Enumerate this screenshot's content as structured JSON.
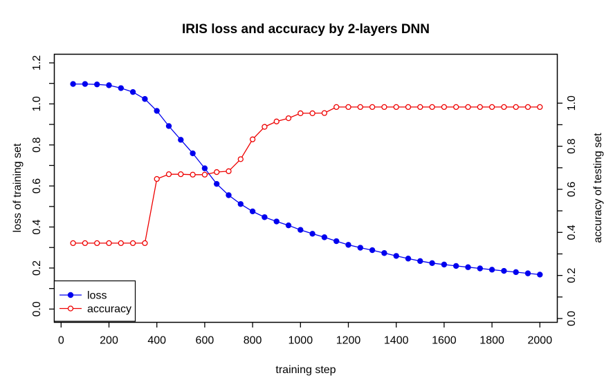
{
  "chart_data": {
    "type": "line",
    "title": "IRIS loss and accuracy by 2-layers DNN",
    "xlabel": "training step",
    "ylabel_left": "loss of training set",
    "ylabel_right": "accuracy of testing set",
    "grid": false,
    "x": [
      50,
      100,
      150,
      200,
      250,
      300,
      350,
      400,
      450,
      500,
      550,
      600,
      650,
      700,
      750,
      800,
      850,
      900,
      950,
      1000,
      1050,
      1100,
      1150,
      1200,
      1250,
      1300,
      1350,
      1400,
      1450,
      1500,
      1550,
      1600,
      1650,
      1700,
      1750,
      1800,
      1850,
      1900,
      1950,
      2000
    ],
    "series": [
      {
        "name": "loss",
        "axis": "left",
        "color": "#0000EE",
        "marker": "filled-circle",
        "values": [
          1.097,
          1.097,
          1.095,
          1.091,
          1.077,
          1.058,
          1.024,
          0.966,
          0.892,
          0.825,
          0.759,
          0.686,
          0.61,
          0.555,
          0.512,
          0.476,
          0.448,
          0.427,
          0.408,
          0.386,
          0.367,
          0.35,
          0.331,
          0.313,
          0.299,
          0.287,
          0.273,
          0.259,
          0.246,
          0.234,
          0.224,
          0.217,
          0.21,
          0.204,
          0.198,
          0.192,
          0.186,
          0.18,
          0.174,
          0.168
        ]
      },
      {
        "name": "accuracy",
        "axis": "right",
        "color": "#EE0000",
        "marker": "open-circle",
        "values": [
          0.35,
          0.35,
          0.35,
          0.35,
          0.35,
          0.35,
          0.35,
          0.648,
          0.67,
          0.67,
          0.668,
          0.668,
          0.68,
          0.684,
          0.74,
          0.832,
          0.89,
          0.915,
          0.93,
          0.953,
          0.953,
          0.954,
          0.982,
          0.982,
          0.982,
          0.982,
          0.982,
          0.982,
          0.982,
          0.982,
          0.982,
          0.982,
          0.982,
          0.982,
          0.982,
          0.982,
          0.982,
          0.982,
          0.982,
          0.982
        ]
      }
    ],
    "x_axis": {
      "range": [
        0,
        2000
      ],
      "ticks": [
        {
          "v": 0,
          "label": "0"
        },
        {
          "v": 200,
          "label": "200"
        },
        {
          "v": 400,
          "label": "400"
        },
        {
          "v": 600,
          "label": "600"
        },
        {
          "v": 800,
          "label": "800"
        },
        {
          "v": 1000,
          "label": "1000"
        },
        {
          "v": 1200,
          "label": "1200"
        },
        {
          "v": 1400,
          "label": "1400"
        },
        {
          "v": 1600,
          "label": "1600"
        },
        {
          "v": 1800,
          "label": "1800"
        },
        {
          "v": 2000,
          "label": "2000"
        }
      ]
    },
    "left_axis": {
      "range": [
        0,
        1.2
      ],
      "ticks": [
        {
          "v": 0.0,
          "label": "0.0"
        },
        {
          "v": 0.1
        },
        {
          "v": 0.2,
          "label": "0.2"
        },
        {
          "v": 0.3
        },
        {
          "v": 0.4,
          "label": "0.4"
        },
        {
          "v": 0.5
        },
        {
          "v": 0.6,
          "label": "0.6"
        },
        {
          "v": 0.7
        },
        {
          "v": 0.8,
          "label": "0.8"
        },
        {
          "v": 0.9
        },
        {
          "v": 1.0,
          "label": "1.0"
        },
        {
          "v": 1.1
        },
        {
          "v": 1.2,
          "label": "1.2"
        }
      ]
    },
    "right_axis": {
      "range": [
        0,
        1.0
      ],
      "ticks": [
        {
          "v": 0.0,
          "label": "0.0"
        },
        {
          "v": 0.1
        },
        {
          "v": 0.2,
          "label": "0.2"
        },
        {
          "v": 0.3
        },
        {
          "v": 0.4,
          "label": "0.4"
        },
        {
          "v": 0.5
        },
        {
          "v": 0.6,
          "label": "0.6"
        },
        {
          "v": 0.7
        },
        {
          "v": 0.8,
          "label": "0.8"
        },
        {
          "v": 0.9
        },
        {
          "v": 1.0,
          "label": "1.0"
        }
      ]
    },
    "legend": {
      "position": "bottom-left",
      "entries": [
        {
          "label": "loss",
          "color": "#0000EE",
          "marker": "filled-circle"
        },
        {
          "label": "accuracy",
          "color": "#EE0000",
          "marker": "open-circle"
        }
      ]
    }
  }
}
